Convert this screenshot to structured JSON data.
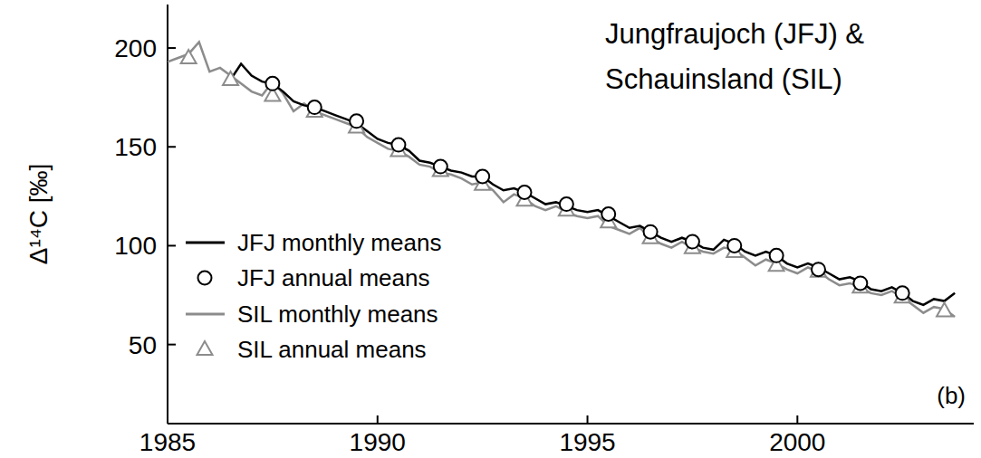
{
  "chart_data": {
    "type": "line",
    "title": "Jungfraujoch (JFJ) & Schauinsland (SIL)",
    "y_label": "Δ¹⁴C [‰]",
    "annotations": [
      "(b)"
    ],
    "xlim": [
      1985,
      2004.2
    ],
    "xticks": [
      1985,
      1990,
      1995,
      2000
    ],
    "ylim": [
      10,
      222
    ],
    "yticks": [
      50,
      100,
      150,
      200
    ],
    "grid": false,
    "legend": "lower left",
    "series": [
      {
        "name": "JFJ monthly means",
        "type": "line",
        "color": "#000000",
        "line_style": "solid",
        "x": [
          1986.5,
          1986.75,
          1987,
          1987.25,
          1987.5,
          1987.75,
          1988,
          1988.25,
          1988.5,
          1988.75,
          1989,
          1989.25,
          1989.5,
          1989.75,
          1990,
          1990.25,
          1990.5,
          1990.75,
          1991,
          1991.25,
          1991.5,
          1991.75,
          1992,
          1992.25,
          1992.5,
          1992.75,
          1993,
          1993.25,
          1993.5,
          1993.75,
          1994,
          1994.25,
          1994.5,
          1994.75,
          1995,
          1995.25,
          1995.5,
          1995.75,
          1996,
          1996.25,
          1996.5,
          1996.75,
          1997,
          1997.25,
          1997.5,
          1997.75,
          1998,
          1998.25,
          1998.5,
          1998.75,
          1999,
          1999.25,
          1999.5,
          1999.75,
          2000,
          2000.25,
          2000.5,
          2000.75,
          2001,
          2001.25,
          2001.5,
          2001.75,
          2002,
          2002.25,
          2002.5,
          2002.75,
          2003,
          2003.25,
          2003.5,
          2003.75
        ],
        "values": [
          184,
          192,
          186,
          183,
          182,
          178,
          173,
          171,
          170,
          168,
          166,
          164,
          162,
          158,
          154,
          152,
          151,
          148,
          143,
          142,
          140,
          138,
          137,
          135,
          135,
          131,
          128,
          129,
          127,
          124,
          121,
          122,
          120,
          118,
          117,
          118,
          115,
          112,
          109,
          110,
          107,
          104,
          102,
          104,
          102,
          99,
          98,
          103,
          101,
          97,
          95,
          97,
          95,
          91,
          89,
          91,
          89,
          86,
          83,
          84,
          82,
          78,
          77,
          79,
          76,
          72,
          70,
          73,
          72,
          76
        ]
      },
      {
        "name": "JFJ annual means",
        "type": "scatter",
        "color": "#000000",
        "marker": "circle",
        "x": [
          1987.5,
          1988.5,
          1989.5,
          1990.5,
          1991.5,
          1992.5,
          1993.5,
          1994.5,
          1995.5,
          1996.5,
          1997.5,
          1998.5,
          1999.5,
          2000.5,
          2001.5,
          2002.5
        ],
        "values": [
          182,
          170,
          163,
          151,
          140,
          135,
          127,
          121,
          116,
          107,
          102,
          100,
          95,
          88,
          81,
          76
        ]
      },
      {
        "name": "SIL monthly means",
        "type": "line",
        "color": "#8c8c8c",
        "line_style": "solid",
        "x": [
          1985,
          1985.25,
          1985.5,
          1985.75,
          1986,
          1986.25,
          1986.5,
          1986.75,
          1987,
          1987.25,
          1987.5,
          1987.75,
          1988,
          1988.25,
          1988.5,
          1988.75,
          1989,
          1989.25,
          1989.5,
          1989.75,
          1990,
          1990.25,
          1990.5,
          1990.75,
          1991,
          1991.25,
          1991.5,
          1991.75,
          1992,
          1992.25,
          1992.5,
          1992.75,
          1993,
          1993.25,
          1993.5,
          1993.75,
          1994,
          1994.25,
          1994.5,
          1994.75,
          1995,
          1995.25,
          1995.5,
          1995.75,
          1996,
          1996.25,
          1996.5,
          1996.75,
          1997,
          1997.25,
          1997.5,
          1997.75,
          1998,
          1998.25,
          1998.5,
          1998.75,
          1999,
          1999.25,
          1999.5,
          1999.75,
          2000,
          2000.25,
          2000.5,
          2000.75,
          2001,
          2001.25,
          2001.5,
          2001.75,
          2002,
          2002.25,
          2002.5,
          2002.75,
          2003,
          2003.25,
          2003.5,
          2003.75
        ],
        "values": [
          193,
          195,
          197,
          203,
          188,
          190,
          186,
          182,
          178,
          176,
          183,
          177,
          168,
          172,
          168,
          166,
          164,
          162,
          160,
          155,
          152,
          149,
          148,
          145,
          141,
          140,
          137,
          136,
          134,
          131,
          132,
          128,
          122,
          126,
          124,
          120,
          118,
          120,
          117,
          115,
          114,
          115,
          110,
          108,
          106,
          109,
          104,
          101,
          99,
          102,
          99,
          97,
          96,
          99,
          98,
          94,
          90,
          93,
          91,
          88,
          86,
          89,
          87,
          83,
          80,
          81,
          79,
          76,
          75,
          77,
          74,
          70,
          66,
          69,
          68,
          64
        ]
      },
      {
        "name": "SIL annual means",
        "type": "scatter",
        "color": "#8c8c8c",
        "marker": "triangle",
        "x": [
          1985.5,
          1986.5,
          1987.5,
          1988.5,
          1989.5,
          1990.5,
          1991.5,
          1992.5,
          1993.5,
          1994.5,
          1995.5,
          1996.5,
          1997.5,
          1998.5,
          1999.5,
          2000.5,
          2001.5,
          2002.5,
          2003.5
        ],
        "values": [
          195,
          184,
          176,
          168,
          160,
          148,
          138,
          131,
          123,
          118,
          112,
          104,
          99,
          97,
          90,
          87,
          79,
          74,
          67
        ]
      }
    ]
  }
}
